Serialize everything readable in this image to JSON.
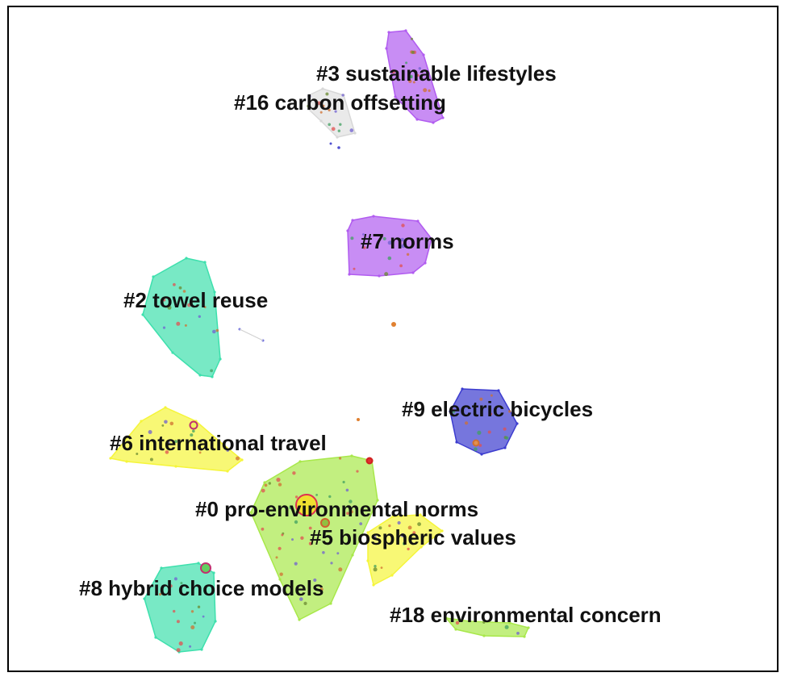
{
  "clusters": [
    {
      "id": "c3",
      "label": "#3 sustainable lifestyles",
      "color": "#b15cf0"
    },
    {
      "id": "c16",
      "label": "#16 carbon offsetting",
      "color": "#d8d8d8"
    },
    {
      "id": "c7",
      "label": "#7 norms",
      "color": "#b15cf0"
    },
    {
      "id": "c2",
      "label": "#2 towel reuse",
      "color": "#3ee0ad"
    },
    {
      "id": "c9",
      "label": "#9 electric bicycles",
      "color": "#3c3ccf"
    },
    {
      "id": "c6",
      "label": "#6 international travel",
      "color": "#f5f53a"
    },
    {
      "id": "c0",
      "label": "#0 pro-environmental norms",
      "color": "#a8e84a"
    },
    {
      "id": "c5",
      "label": "#5 biospheric values",
      "color": "#f5f53a"
    },
    {
      "id": "c8",
      "label": "#8 hybrid choice models",
      "color": "#3ee0ad"
    },
    {
      "id": "c18",
      "label": "#18 environmental concern",
      "color": "#a8e84a"
    }
  ]
}
